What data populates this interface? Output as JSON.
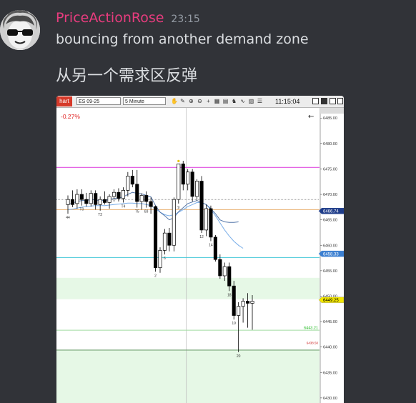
{
  "message": {
    "username": "PriceActionRose",
    "timestamp": "23:15",
    "text_line1": "bouncing from another demand zone",
    "text_line2": "从另一个需求区反弹",
    "avatar_icon": "avatar-sunglasses-icon",
    "username_color": "#e83c7e"
  },
  "toolbar": {
    "tab_label": "hart",
    "instrument": "ES 09-25",
    "timeframe": "5 Minute",
    "clock": "11:15:04",
    "tool_icons": [
      "hand-icon",
      "pencil-icon",
      "zoom-in-icon",
      "zoom-out-icon",
      "crosshair-icon",
      "calendar-icon",
      "data-box-icon",
      "strategy-icon",
      "indicator-icon",
      "template-icon",
      "properties-icon"
    ]
  },
  "chart_data": {
    "type": "candlestick",
    "change_label": "-0.27%",
    "ylim": [
      6429.0,
      6487.0
    ],
    "y_ticks": [
      "6485.00",
      "6480.00",
      "6475.00",
      "6470.00",
      "6465.00",
      "6460.00",
      "6455.00",
      "6450.00",
      "6445.00",
      "6440.00",
      "6435.00",
      "6430.00"
    ],
    "price_badges": [
      {
        "label": "6466.74",
        "price": 6466.74,
        "color": "#1f3d8a",
        "text_color": "#ffffff"
      },
      {
        "label": "6458.33",
        "price": 6458.33,
        "color": "#3b7fd1",
        "text_color": "#ffffff"
      },
      {
        "label": "6449.25",
        "price": 6449.25,
        "color": "#f2e600",
        "text_color": "#000000"
      }
    ],
    "zone_labels": [
      {
        "label": "6443.21",
        "price": 6443.3,
        "color": "#22bb22"
      },
      {
        "label": "6438.50",
        "price": 6440.4,
        "color": "#cc2222"
      }
    ],
    "zones": [
      {
        "from": 6449.4,
        "to": 6453.6,
        "color": "#e6f8e6"
      },
      {
        "from": 6428.0,
        "to": 6439.4,
        "color": "#e6f8e6"
      }
    ],
    "hlines": [
      {
        "price": 6475.3,
        "color": "#e050e0",
        "width": 1.2,
        "dash": ""
      },
      {
        "price": 6469.0,
        "color": "#666666",
        "width": 0.6,
        "dash": "1,1"
      },
      {
        "price": 6467.0,
        "color": "#e8b070",
        "width": 1.0,
        "dash": ""
      },
      {
        "price": 6457.6,
        "color": "#44c8d8",
        "width": 1.0,
        "dash": ""
      },
      {
        "price": 6443.3,
        "color": "#a0dca0",
        "width": 1.0,
        "dash": ""
      },
      {
        "price": 6439.4,
        "color": "#70a070",
        "width": 1.2,
        "dash": ""
      }
    ],
    "vline_index": 26,
    "candles": [
      {
        "o": 6468.0,
        "h": 6469.8,
        "l": 6466.2,
        "c": 6469.0,
        "label": "44"
      },
      {
        "o": 6469.0,
        "h": 6470.8,
        "l": 6467.5,
        "c": 6468.0,
        "label": ""
      },
      {
        "o": 6468.2,
        "h": 6471.0,
        "l": 6467.2,
        "c": 6470.0,
        "label": ""
      },
      {
        "o": 6470.0,
        "h": 6471.0,
        "l": 6467.8,
        "c": 6469.0,
        "label": "T0"
      },
      {
        "o": 6469.0,
        "h": 6470.3,
        "l": 6467.6,
        "c": 6468.2,
        "label": ""
      },
      {
        "o": 6468.2,
        "h": 6470.8,
        "l": 6467.6,
        "c": 6470.2,
        "label": ""
      },
      {
        "o": 6470.2,
        "h": 6470.8,
        "l": 6467.0,
        "c": 6468.0,
        "label": ""
      },
      {
        "o": 6468.0,
        "h": 6469.6,
        "l": 6466.8,
        "c": 6469.0,
        "label": "T2"
      },
      {
        "o": 6469.0,
        "h": 6470.6,
        "l": 6468.0,
        "c": 6468.4,
        "label": ""
      },
      {
        "o": 6468.4,
        "h": 6470.0,
        "l": 6467.2,
        "c": 6469.6,
        "label": ""
      },
      {
        "o": 6469.6,
        "h": 6471.0,
        "l": 6468.6,
        "c": 6470.4,
        "label": ""
      },
      {
        "o": 6470.4,
        "h": 6471.2,
        "l": 6468.6,
        "c": 6469.2,
        "label": ""
      },
      {
        "o": 6469.2,
        "h": 6471.4,
        "l": 6468.4,
        "c": 6470.8,
        "label": "T4"
      },
      {
        "o": 6470.8,
        "h": 6474.4,
        "l": 6469.6,
        "c": 6473.6,
        "label": ""
      },
      {
        "o": 6473.6,
        "h": 6474.8,
        "l": 6471.4,
        "c": 6472.0,
        "label": ""
      },
      {
        "o": 6472.0,
        "h": 6474.8,
        "l": 6467.4,
        "c": 6468.6,
        "label": "T5"
      },
      {
        "o": 6468.6,
        "h": 6470.2,
        "l": 6467.0,
        "c": 6469.8,
        "label": ""
      },
      {
        "o": 6469.8,
        "h": 6470.6,
        "l": 6467.4,
        "c": 6468.6,
        "label": "83"
      },
      {
        "o": 6468.6,
        "h": 6469.4,
        "l": 6466.2,
        "c": 6467.6,
        "label": ""
      },
      {
        "o": 6467.6,
        "h": 6467.8,
        "l": 6454.8,
        "c": 6455.6,
        "label": "2"
      },
      {
        "o": 6455.6,
        "h": 6459.6,
        "l": 6454.6,
        "c": 6459.0,
        "label": ""
      },
      {
        "o": 6459.0,
        "h": 6463.2,
        "l": 6458.2,
        "c": 6462.4,
        "label": "6"
      },
      {
        "o": 6462.4,
        "h": 6463.4,
        "l": 6458.8,
        "c": 6460.0,
        "label": ""
      },
      {
        "o": 6460.0,
        "h": 6469.4,
        "l": 6458.8,
        "c": 6469.0,
        "label": ""
      },
      {
        "o": 6469.0,
        "h": 6476.0,
        "l": 6468.2,
        "c": 6476.0,
        "label": "9"
      },
      {
        "o": 6476.0,
        "h": 6476.6,
        "l": 6470.8,
        "c": 6472.0,
        "label": ""
      },
      {
        "o": 6472.0,
        "h": 6475.0,
        "l": 6470.8,
        "c": 6474.4,
        "label": ""
      },
      {
        "o": 6474.4,
        "h": 6475.0,
        "l": 6468.6,
        "c": 6469.6,
        "label": ""
      },
      {
        "o": 6469.6,
        "h": 6473.0,
        "l": 6468.8,
        "c": 6472.6,
        "label": ""
      },
      {
        "o": 6472.6,
        "h": 6473.6,
        "l": 6462.4,
        "c": 6463.0,
        "label": "12"
      },
      {
        "o": 6463.0,
        "h": 6468.0,
        "l": 6461.8,
        "c": 6467.2,
        "label": ""
      },
      {
        "o": 6467.2,
        "h": 6467.8,
        "l": 6460.8,
        "c": 6461.6,
        "label": "14"
      },
      {
        "o": 6461.6,
        "h": 6462.0,
        "l": 6456.8,
        "c": 6457.2,
        "label": ""
      },
      {
        "o": 6457.2,
        "h": 6458.2,
        "l": 6453.4,
        "c": 6454.0,
        "label": ""
      },
      {
        "o": 6454.0,
        "h": 6456.6,
        "l": 6453.0,
        "c": 6455.8,
        "label": ""
      },
      {
        "o": 6455.8,
        "h": 6456.6,
        "l": 6451.0,
        "c": 6452.0,
        "label": "18"
      },
      {
        "o": 6452.0,
        "h": 6453.0,
        "l": 6445.4,
        "c": 6446.2,
        "label": "19"
      },
      {
        "o": 6446.2,
        "h": 6448.8,
        "l": 6439.0,
        "c": 6448.0,
        "label": "20"
      },
      {
        "o": 6448.0,
        "h": 6449.6,
        "l": 6444.8,
        "c": 6449.0,
        "label": ""
      },
      {
        "o": 6449.0,
        "h": 6450.6,
        "l": 6443.8,
        "c": 6448.6,
        "label": ""
      },
      {
        "o": 6448.6,
        "h": 6450.2,
        "l": 6443.4,
        "c": 6449.0,
        "label": ""
      }
    ],
    "ma_fast": [
      6468.0,
      6468.3,
      6468.6,
      6468.8,
      6468.8,
      6469.0,
      6468.9,
      6468.8,
      6468.8,
      6469.0,
      6469.2,
      6469.3,
      6469.5,
      6470.0,
      6470.4,
      6470.2,
      6470.1,
      6469.8,
      6469.5,
      6467.8,
      6466.5,
      6465.8,
      6465.0,
      6465.4,
      6466.6,
      6467.4,
      6468.2,
      6468.5,
      6468.8,
      6468.4,
      6468.0,
      6467.2,
      6466.2,
      6465.0,
      6464.6,
      6464.5,
      6464.5,
      6464.6,
      null,
      null,
      null
    ],
    "ma_slow": [
      6467.0,
      6467.1,
      6467.3,
      6467.5,
      6467.6,
      6467.7,
      6467.8,
      6467.8,
      6467.8,
      6467.9,
      6468.0,
      6468.1,
      6468.2,
      6468.3,
      6468.3,
      6468.2,
      6468.2,
      6468.0,
      6467.8,
      6467.2,
      6466.5,
      6466.0,
      6465.8,
      6466.0,
      6466.5,
      6467.0,
      6467.6,
      6468.0,
      6468.4,
      6468.4,
      6468.0,
      6467.0,
      6465.8,
      6464.4,
      6463.0,
      6461.8,
      6460.8,
      6460.0,
      6459.4,
      null,
      null
    ]
  },
  "colors": {
    "background": "#313338",
    "message_text": "#dbdee1",
    "timestamp": "#949ba4"
  }
}
